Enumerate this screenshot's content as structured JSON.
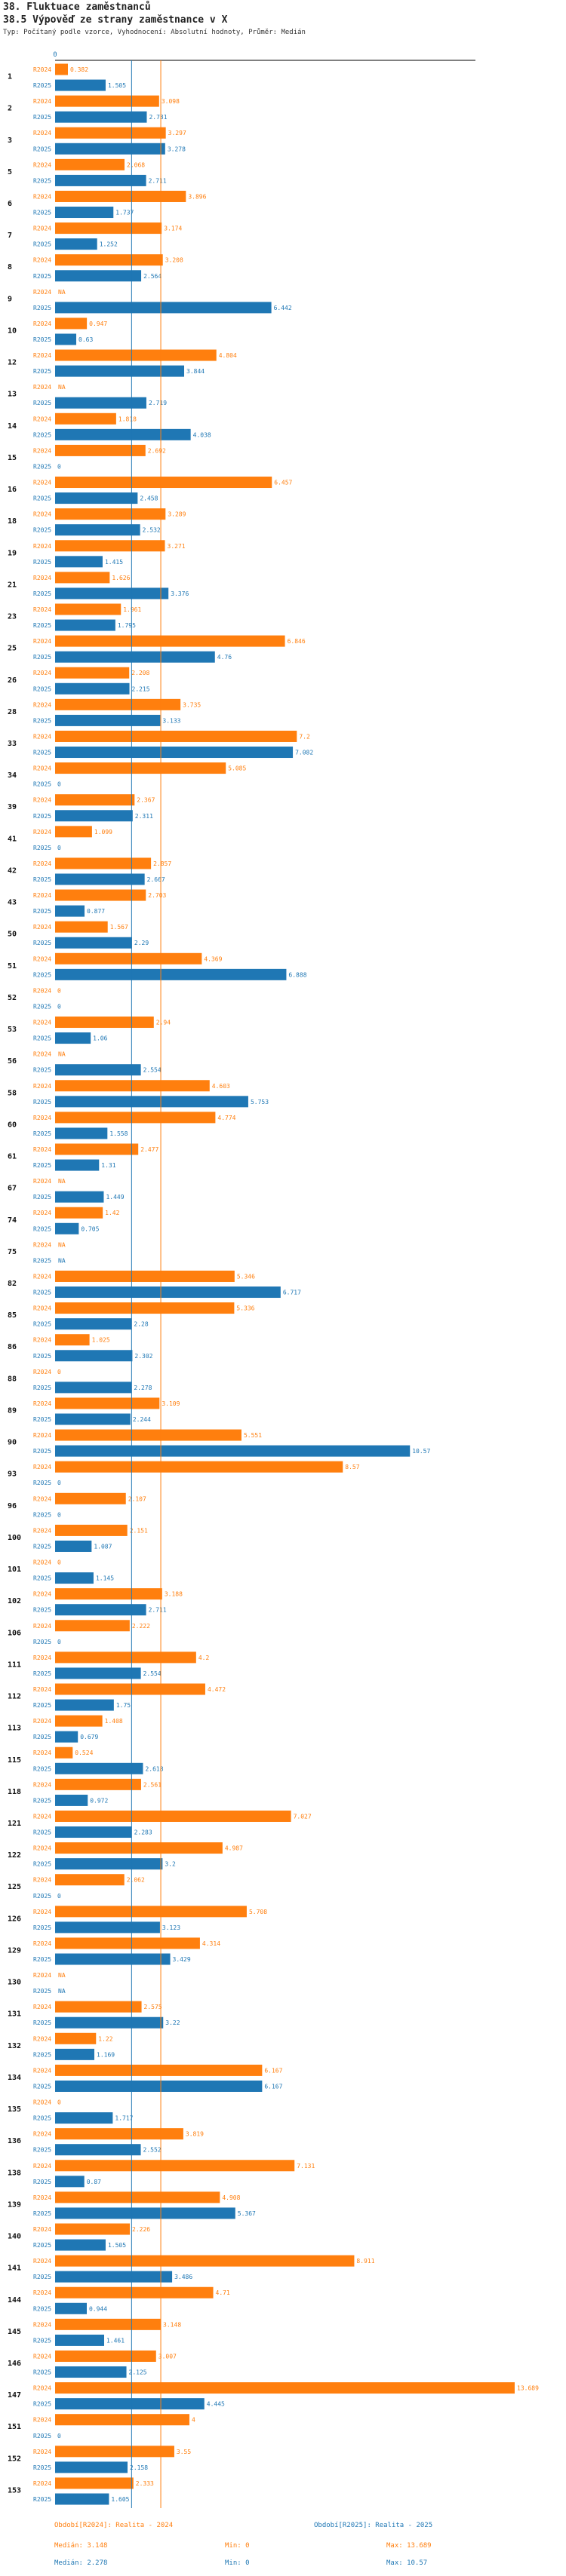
{
  "title": "38. Fluktuace zaměstnanců",
  "subtitle": "38.5 Výpověď ze strany zaměstnance v X",
  "description": "Typ: Počítaný podle vzorce, Vyhodnocení: Absolutní hodnoty, Průměr: Medián",
  "colors": {
    "r2024": "#ff7f0e",
    "r2025": "#1f77b4",
    "axis": "#000000",
    "text": "#222222"
  },
  "chart_data": {
    "type": "bar",
    "orientation": "horizontal",
    "axis_zero_label": "0",
    "x_range": [
      0,
      13.689
    ],
    "na_label": "NA",
    "series_labels": [
      "R2024",
      "R2025"
    ],
    "groups": [
      {
        "id": "1",
        "r2024": 0.382,
        "r2025": 1.505
      },
      {
        "id": "2",
        "r2024": 3.098,
        "r2025": 2.731
      },
      {
        "id": "3",
        "r2024": 3.297,
        "r2025": 3.278
      },
      {
        "id": "5",
        "r2024": 2.068,
        "r2025": 2.711
      },
      {
        "id": "6",
        "r2024": 3.896,
        "r2025": 1.737
      },
      {
        "id": "7",
        "r2024": 3.174,
        "r2025": 1.252
      },
      {
        "id": "8",
        "r2024": 3.208,
        "r2025": 2.564
      },
      {
        "id": "9",
        "r2024": null,
        "r2025": 6.442
      },
      {
        "id": "10",
        "r2024": 0.947,
        "r2025": 0.63
      },
      {
        "id": "12",
        "r2024": 4.804,
        "r2025": 3.844
      },
      {
        "id": "13",
        "r2024": null,
        "r2025": 2.719
      },
      {
        "id": "14",
        "r2024": 1.818,
        "r2025": 4.038
      },
      {
        "id": "15",
        "r2024": 2.692,
        "r2025": 0
      },
      {
        "id": "16",
        "r2024": 6.457,
        "r2025": 2.458
      },
      {
        "id": "18",
        "r2024": 3.289,
        "r2025": 2.532
      },
      {
        "id": "19",
        "r2024": 3.271,
        "r2025": 1.415
      },
      {
        "id": "21",
        "r2024": 1.626,
        "r2025": 3.376
      },
      {
        "id": "23",
        "r2024": 1.961,
        "r2025": 1.795
      },
      {
        "id": "25",
        "r2024": 6.846,
        "r2025": 4.76
      },
      {
        "id": "26",
        "r2024": 2.208,
        "r2025": 2.215
      },
      {
        "id": "28",
        "r2024": 3.735,
        "r2025": 3.133
      },
      {
        "id": "33",
        "r2024": 7.2,
        "r2025": 7.082
      },
      {
        "id": "34",
        "r2024": 5.085,
        "r2025": 0
      },
      {
        "id": "39",
        "r2024": 2.367,
        "r2025": 2.311
      },
      {
        "id": "41",
        "r2024": 1.099,
        "r2025": 0
      },
      {
        "id": "42",
        "r2024": 2.857,
        "r2025": 2.667
      },
      {
        "id": "43",
        "r2024": 2.703,
        "r2025": 0.877
      },
      {
        "id": "50",
        "r2024": 1.567,
        "r2025": 2.29
      },
      {
        "id": "51",
        "r2024": 4.369,
        "r2025": 6.888
      },
      {
        "id": "52",
        "r2024": 0,
        "r2025": 0
      },
      {
        "id": "53",
        "r2024": 2.94,
        "r2025": 1.06
      },
      {
        "id": "56",
        "r2024": null,
        "r2025": 2.554
      },
      {
        "id": "58",
        "r2024": 4.603,
        "r2025": 5.753
      },
      {
        "id": "60",
        "r2024": 4.774,
        "r2025": 1.558
      },
      {
        "id": "61",
        "r2024": 2.477,
        "r2025": 1.31
      },
      {
        "id": "67",
        "r2024": null,
        "r2025": 1.449
      },
      {
        "id": "74",
        "r2024": 1.42,
        "r2025": 0.705
      },
      {
        "id": "75",
        "r2024": null,
        "r2025": null
      },
      {
        "id": "82",
        "r2024": 5.346,
        "r2025": 6.717
      },
      {
        "id": "85",
        "r2024": 5.336,
        "r2025": 2.28
      },
      {
        "id": "86",
        "r2024": 1.025,
        "r2025": 2.302
      },
      {
        "id": "88",
        "r2024": 0,
        "r2025": 2.278
      },
      {
        "id": "89",
        "r2024": 3.109,
        "r2025": 2.244
      },
      {
        "id": "90",
        "r2024": 5.551,
        "r2025": 10.57
      },
      {
        "id": "93",
        "r2024": 8.57,
        "r2025": 0
      },
      {
        "id": "96",
        "r2024": 2.107,
        "r2025": 0
      },
      {
        "id": "100",
        "r2024": 2.151,
        "r2025": 1.087
      },
      {
        "id": "101",
        "r2024": 0,
        "r2025": 1.145
      },
      {
        "id": "102",
        "r2024": 3.188,
        "r2025": 2.711
      },
      {
        "id": "106",
        "r2024": 2.222,
        "r2025": 0
      },
      {
        "id": "111",
        "r2024": 4.2,
        "r2025": 2.554
      },
      {
        "id": "112",
        "r2024": 4.472,
        "r2025": 1.75
      },
      {
        "id": "113",
        "r2024": 1.408,
        "r2025": 0.679
      },
      {
        "id": "115",
        "r2024": 0.524,
        "r2025": 2.618
      },
      {
        "id": "118",
        "r2024": 2.561,
        "r2025": 0.972
      },
      {
        "id": "121",
        "r2024": 7.027,
        "r2025": 2.283
      },
      {
        "id": "122",
        "r2024": 4.987,
        "r2025": 3.2
      },
      {
        "id": "125",
        "r2024": 2.062,
        "r2025": 0
      },
      {
        "id": "126",
        "r2024": 5.708,
        "r2025": 3.123
      },
      {
        "id": "129",
        "r2024": 4.314,
        "r2025": 3.429
      },
      {
        "id": "130",
        "r2024": null,
        "r2025": null
      },
      {
        "id": "131",
        "r2024": 2.575,
        "r2025": 3.22
      },
      {
        "id": "132",
        "r2024": 1.22,
        "r2025": 1.169
      },
      {
        "id": "134",
        "r2024": 6.167,
        "r2025": 6.167
      },
      {
        "id": "135",
        "r2024": 0,
        "r2025": 1.717
      },
      {
        "id": "136",
        "r2024": 3.819,
        "r2025": 2.552
      },
      {
        "id": "138",
        "r2024": 7.131,
        "r2025": 0.87
      },
      {
        "id": "139",
        "r2024": 4.908,
        "r2025": 5.367
      },
      {
        "id": "140",
        "r2024": 2.226,
        "r2025": 1.505
      },
      {
        "id": "141",
        "r2024": 8.911,
        "r2025": 3.486
      },
      {
        "id": "144",
        "r2024": 4.71,
        "r2025": 0.944
      },
      {
        "id": "145",
        "r2024": 3.148,
        "r2025": 1.461
      },
      {
        "id": "146",
        "r2024": 3.007,
        "r2025": 2.125
      },
      {
        "id": "147",
        "r2024": 13.689,
        "r2025": 4.445
      },
      {
        "id": "151",
        "r2024": 4,
        "r2025": 0
      },
      {
        "id": "152",
        "r2024": 3.55,
        "r2025": 2.158
      },
      {
        "id": "153",
        "r2024": 2.333,
        "r2025": 1.605
      }
    ],
    "reference_lines": {
      "median_2024": 3.148,
      "median_2025": 2.278
    },
    "legend": {
      "r2024": {
        "label": "Období[R2024]: Realita - 2024",
        "median": "Medián: 3.148",
        "min": "Min: 0",
        "max": "Max: 13.689"
      },
      "r2025": {
        "label": "Období[R2025]: Realita - 2025",
        "median": "Medián: 2.278",
        "min": "Min: 0",
        "max": "Max: 10.57"
      }
    }
  }
}
